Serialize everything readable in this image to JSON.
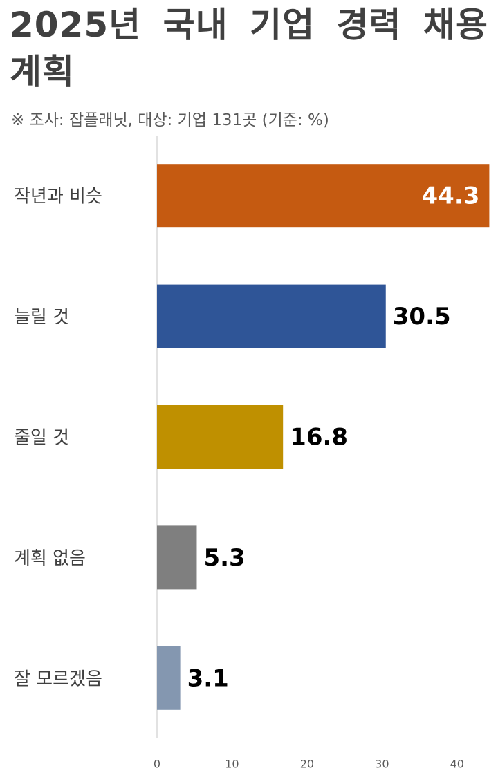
{
  "chart_data": {
    "type": "barh",
    "title": "2025년 국내 기업 경력 채용 계획",
    "subtitle": "※ 조사: 잡플래닛, 대상: 기업 131곳 (기준: %)",
    "categories": [
      "작년과 비슷",
      "늘릴 것",
      "줄일 것",
      "계획 없음",
      "잘 모르겠음"
    ],
    "values": [
      44.3,
      30.5,
      16.8,
      5.3,
      3.1
    ],
    "colors": [
      "#c55a11",
      "#2f5597",
      "#bf9000",
      "#7f7f7f",
      "#8497b0"
    ],
    "xlim": [
      0,
      45
    ],
    "xticks": [
      0,
      10,
      20,
      30,
      40
    ]
  }
}
